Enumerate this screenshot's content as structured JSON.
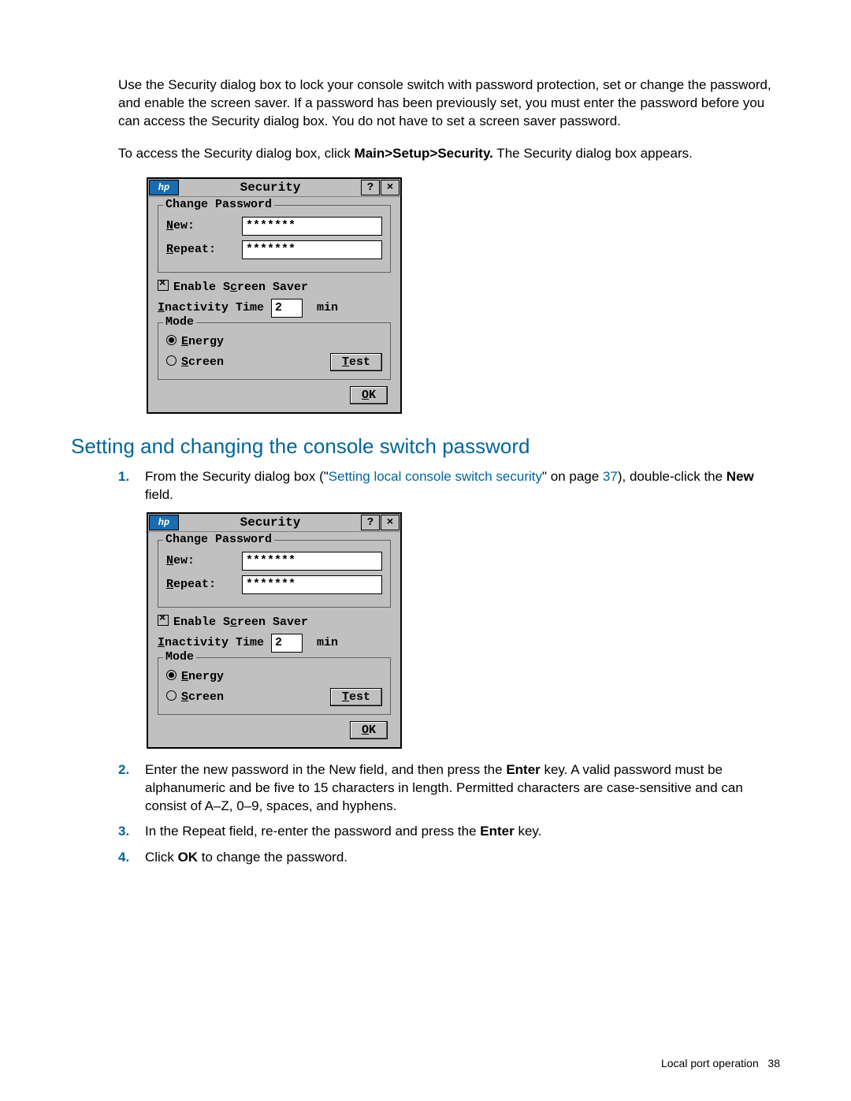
{
  "intro": {
    "p1": "Use the Security dialog box to lock your console switch with password protection, set or change the password, and enable the screen saver. If a password has been previously set, you must enter the password before you can access the Security dialog box. You do not have to set a screen saver password.",
    "p2_pre": "To access the Security dialog box, click ",
    "p2_bold": "Main>Setup>Security.",
    "p2_post": " The Security dialog box appears."
  },
  "dialog": {
    "logo": "hp",
    "title": "Security",
    "help": "?",
    "close": "×",
    "change_pw_legend": "Change Password",
    "new_label": "New:",
    "repeat_label": "Repeat:",
    "new_val": "*******",
    "repeat_val": "*******",
    "enable_ss": "Enable Screen Saver",
    "inactivity_label": "Inactivity Time",
    "inactivity_val": "2",
    "inactivity_unit": "min",
    "mode_legend": "Mode",
    "energy": "Energy",
    "screen": "Screen",
    "test": "Test",
    "ok": "OK"
  },
  "h2": "Setting and changing the console switch password",
  "steps": {
    "s1_pre": "From the Security dialog box (\"",
    "s1_link": "Setting local console switch security",
    "s1_mid": "\" on page ",
    "s1_page": "37",
    "s1_post": "), double-click the ",
    "s1_bold": "New",
    "s1_end": " field.",
    "s2_a": "Enter the new password in the New field, and then press the ",
    "s2_b": "Enter",
    "s2_c": " key. A valid password must be alphanumeric and be five to 15 characters in length. Permitted characters are case-sensitive and can consist of A–Z, 0–9, spaces, and hyphens.",
    "s3_a": "In the Repeat field, re-enter the password and press the ",
    "s3_b": "Enter",
    "s3_c": " key.",
    "s4_a": "Click ",
    "s4_b": "OK",
    "s4_c": " to change the password."
  },
  "footer": {
    "section": "Local port operation",
    "page": "38"
  }
}
